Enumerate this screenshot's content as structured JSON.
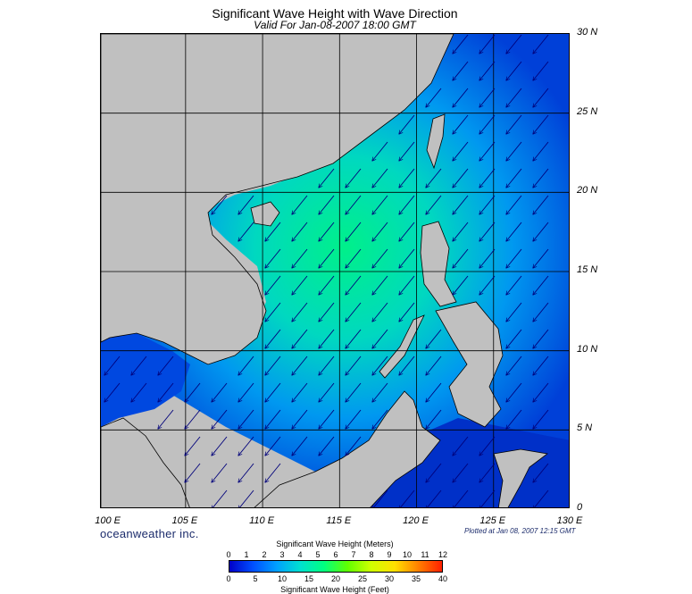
{
  "title": "Significant Wave Height with Wave Direction",
  "subtitle": "Valid For Jan-08-2007 18:00 GMT",
  "map": {
    "lon_labels": [
      "100 E",
      "105 E",
      "110 E",
      "115 E",
      "120 E",
      "125 E",
      "130 E"
    ],
    "lat_labels": [
      "30 N",
      "25 N",
      "20 N",
      "15 N",
      "10 N",
      "5 N",
      "0"
    ],
    "lon_range": [
      99.5,
      130
    ],
    "lat_range": [
      0,
      30
    ],
    "land_color": "#c0c0c0",
    "wave_direction": "northeast, arrows pointing southwest"
  },
  "brand": "oceanweather inc.",
  "plotted_at": "Plotted at Jan 08, 2007 12:15 GMT",
  "legend": {
    "meters_label": "Significant Wave Height (Meters)",
    "feet_label": "Significant Wave Height (Feet)",
    "meters_ticks": [
      "0",
      "1",
      "2",
      "3",
      "4",
      "5",
      "6",
      "7",
      "8",
      "9",
      "10",
      "11",
      "12"
    ],
    "feet_ticks": [
      "0",
      "5",
      "10",
      "15",
      "20",
      "25",
      "30",
      "35",
      "40"
    ],
    "colors": [
      "#0000c8",
      "#0050ff",
      "#00a0ff",
      "#00e0d0",
      "#00ff80",
      "#60ff00",
      "#d0ff00",
      "#ffe000",
      "#ff8000",
      "#ff2000"
    ]
  }
}
